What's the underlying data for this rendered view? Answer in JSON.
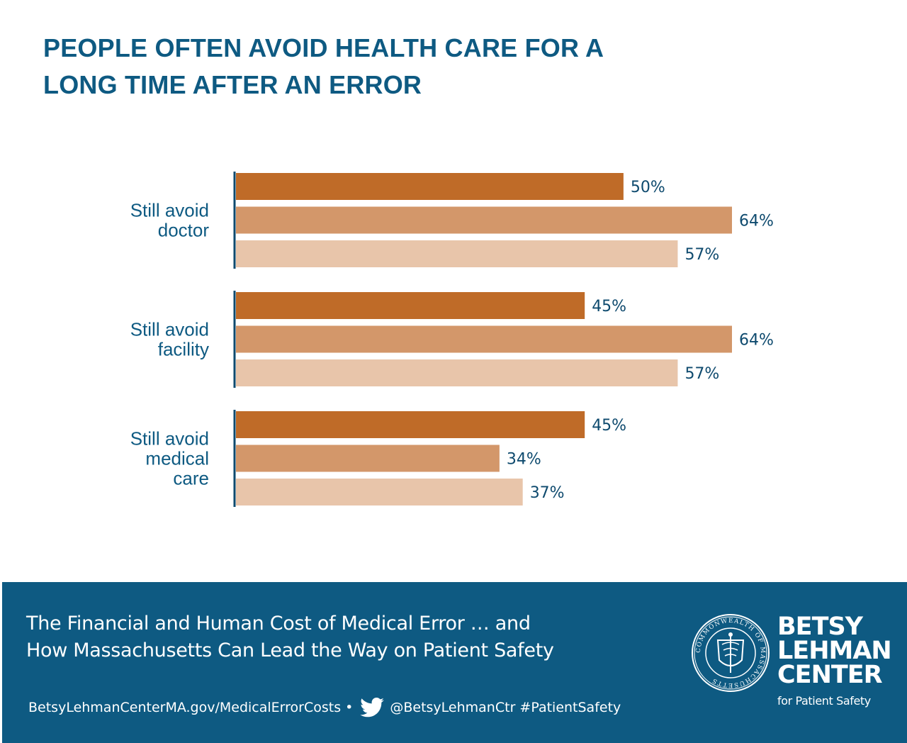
{
  "title": {
    "line1": "PEOPLE OFTEN AVOID HEALTH CARE FOR A",
    "line2": "LONG TIME AFTER AN ERROR"
  },
  "colors": {
    "title": "#0e5a82",
    "axis": "#0e4a6e",
    "footer_bg": "#0e5a82",
    "series": [
      "#bf6b28",
      "#d3976a",
      "#e8c5aa"
    ]
  },
  "chart_data": {
    "type": "bar",
    "orientation": "horizontal",
    "title": "PEOPLE OFTEN AVOID HEALTH CARE FOR A LONG TIME AFTER AN ERROR",
    "categories": [
      [
        "Still avoid",
        "doctor"
      ],
      [
        "Still avoid",
        "facility"
      ],
      [
        "Still avoid",
        "medical",
        "care"
      ]
    ],
    "series": [
      {
        "name": "",
        "values": [
          50,
          45,
          45
        ]
      },
      {
        "name": "",
        "values": [
          64,
          64,
          34
        ]
      },
      {
        "name": "",
        "values": [
          57,
          57,
          37
        ]
      }
    ],
    "value_suffix": "%",
    "xlim": [
      0,
      64
    ],
    "grid": false,
    "legend": "none"
  },
  "footer": {
    "subtitle_line1": "The Financial and Human Cost of Medical Error … and",
    "subtitle_line2": "How Massachusetts Can Lead the Way on Patient Safety",
    "website": "BetsyLehmanCenterMA.gov/MedicalErrorCosts •",
    "twitter_icon": "twitter-bird-icon",
    "social": "@BetsyLehmanCtr #PatientSafety",
    "seal_icon": "massachusetts-seal-icon",
    "seal_text": "COMMONWEALTH OF MASSACHUSETTS",
    "brand_line1": "BETSY",
    "brand_line2": "LEHMAN",
    "brand_line3": "CENTER",
    "brand_tagline": "for Patient Safety"
  }
}
